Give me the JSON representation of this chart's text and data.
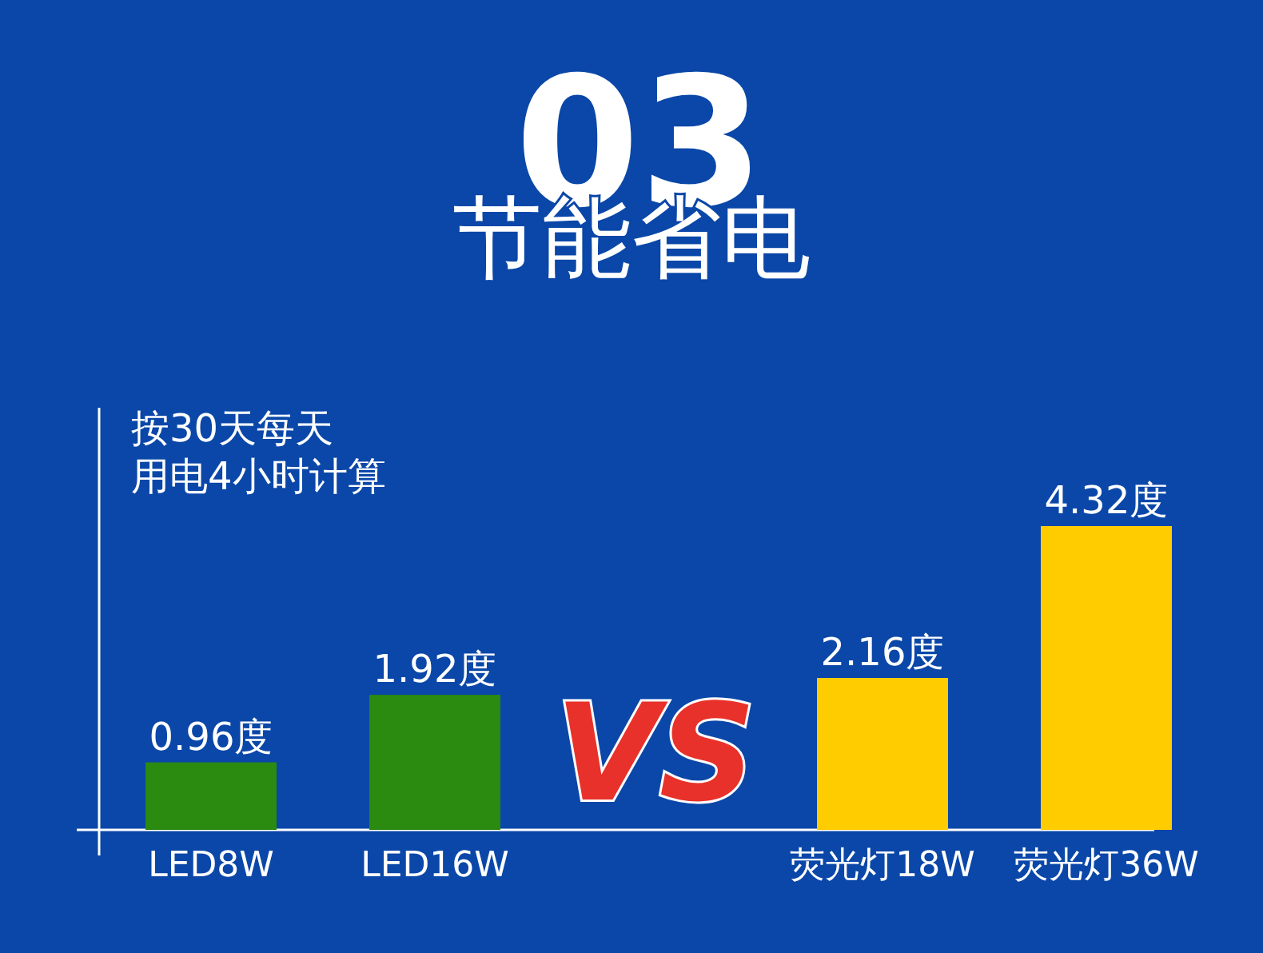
{
  "chart_data": {
    "type": "bar",
    "title": "节能省电",
    "categories": [
      "LED8W",
      "LED16W",
      null,
      "荧光灯18W",
      "荧光灯36W"
    ],
    "values": [
      0.96,
      1.92,
      null,
      2.16,
      4.32
    ],
    "colors": [
      "#2b8a10",
      "#2b8a10",
      null,
      "#ffcc00",
      "#ffcc00"
    ],
    "value_labels": [
      "0.96度",
      "1.92度",
      null,
      "2.16度",
      "4.32度"
    ],
    "relative": false,
    "annotations": [
      "03",
      "按30天每天",
      "用电4小时计算",
      "VS"
    ]
  }
}
